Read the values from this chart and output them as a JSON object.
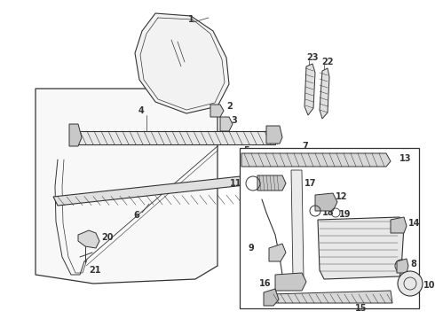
{
  "bg_color": "#ffffff",
  "line_color": "#333333",
  "fig_width": 4.9,
  "fig_height": 3.6,
  "dpi": 100,
  "label_fontsize": 6.5
}
